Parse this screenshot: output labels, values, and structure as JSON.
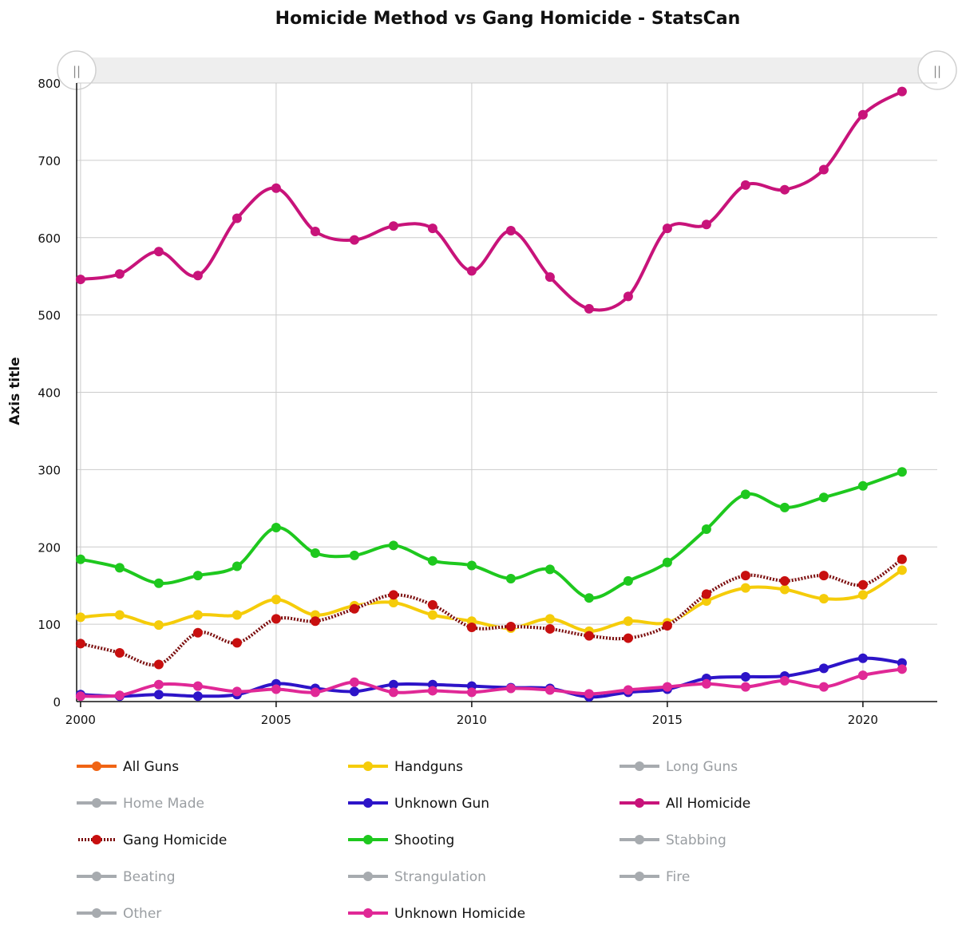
{
  "chart_data": {
    "type": "line",
    "title": "Homicide Method vs Gang Homicide - StatsCan",
    "ylabel": "Axis title",
    "xlabel": "",
    "xlim": [
      1999.9,
      2021.9
    ],
    "ylim": [
      0,
      800
    ],
    "x_ticks": [
      "2000",
      "2005",
      "2010",
      "2015",
      "2020"
    ],
    "y_ticks": [
      "0",
      "100",
      "200",
      "300",
      "400",
      "500",
      "600",
      "700",
      "800"
    ],
    "grid": true,
    "range_selector": {
      "left_handle": "||",
      "right_handle": "||"
    },
    "x": [
      2000,
      2001,
      2002,
      2003,
      2004,
      2005,
      2006,
      2007,
      2008,
      2009,
      2010,
      2011,
      2012,
      2013,
      2014,
      2015,
      2016,
      2017,
      2018,
      2019,
      2020,
      2021
    ],
    "series": [
      {
        "name": "All Homicide",
        "color": "#c8137a",
        "style": "solid",
        "visible": true,
        "values": [
          546,
          553,
          582,
          551,
          625,
          664,
          608,
          597,
          615,
          612,
          557,
          609,
          549,
          508,
          524,
          612,
          617,
          668,
          662,
          688,
          759,
          789
        ]
      },
      {
        "name": "Shooting",
        "color": "#1ec81e",
        "style": "solid",
        "visible": true,
        "values": [
          184,
          173,
          153,
          163,
          175,
          225,
          192,
          189,
          202,
          182,
          176,
          159,
          171,
          134,
          156,
          180,
          223,
          268,
          251,
          264,
          279,
          297
        ]
      },
      {
        "name": "Handguns",
        "color": "#f5cc0a",
        "style": "solid",
        "visible": true,
        "values": [
          109,
          112,
          99,
          112,
          112,
          132,
          112,
          124,
          128,
          112,
          104,
          95,
          107,
          91,
          104,
          102,
          130,
          147,
          145,
          133,
          138,
          170
        ]
      },
      {
        "name": "Gang Homicide",
        "color": "#c80f0f",
        "style": "dotted",
        "visible": true,
        "values": [
          75,
          63,
          48,
          89,
          76,
          107,
          104,
          120,
          138,
          125,
          96,
          97,
          94,
          85,
          82,
          98,
          139,
          163,
          156,
          163,
          151,
          184
        ]
      },
      {
        "name": "Unknown Gun",
        "color": "#2d14c8",
        "style": "solid",
        "visible": true,
        "values": [
          9,
          7,
          9,
          7,
          9,
          23,
          17,
          13,
          22,
          22,
          20,
          18,
          17,
          6,
          12,
          16,
          30,
          32,
          33,
          43,
          56,
          50
        ]
      },
      {
        "name": "Unknown Homicide",
        "color": "#e02896",
        "style": "solid",
        "visible": true,
        "values": [
          7,
          8,
          22,
          20,
          13,
          16,
          12,
          25,
          12,
          14,
          12,
          17,
          15,
          10,
          15,
          19,
          23,
          19,
          27,
          19,
          34,
          42
        ]
      }
    ],
    "legend": [
      {
        "name": "All Guns",
        "color": "#f06414",
        "visible": true,
        "style": "solid"
      },
      {
        "name": "Handguns",
        "color": "#f5cc0a",
        "visible": true,
        "style": "solid"
      },
      {
        "name": "Long Guns",
        "color": "#a7abaf",
        "visible": false,
        "style": "solid"
      },
      {
        "name": "Home Made",
        "color": "#a7abaf",
        "visible": false,
        "style": "solid"
      },
      {
        "name": "Unknown Gun",
        "color": "#2d14c8",
        "visible": true,
        "style": "solid"
      },
      {
        "name": "All Homicide",
        "color": "#c8137a",
        "visible": true,
        "style": "solid"
      },
      {
        "name": "Gang Homicide",
        "color": "#c80f0f",
        "visible": true,
        "style": "dotted"
      },
      {
        "name": "Shooting",
        "color": "#1ec81e",
        "visible": true,
        "style": "solid"
      },
      {
        "name": "Stabbing",
        "color": "#a7abaf",
        "visible": false,
        "style": "solid"
      },
      {
        "name": "Beating",
        "color": "#a7abaf",
        "visible": false,
        "style": "solid"
      },
      {
        "name": "Strangulation",
        "color": "#a7abaf",
        "visible": false,
        "style": "solid"
      },
      {
        "name": "Fire",
        "color": "#a7abaf",
        "visible": false,
        "style": "solid"
      },
      {
        "name": "Other",
        "color": "#a7abaf",
        "visible": false,
        "style": "solid"
      },
      {
        "name": "Unknown Homicide",
        "color": "#e02896",
        "visible": true,
        "style": "solid"
      }
    ]
  }
}
